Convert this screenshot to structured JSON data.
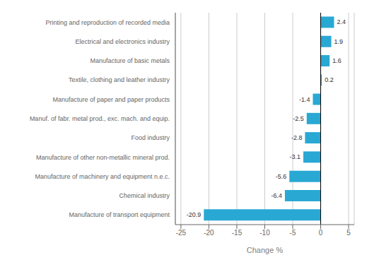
{
  "chart_data": {
    "type": "bar",
    "orientation": "horizontal",
    "categories": [
      "Manufacture of transport equipment",
      "Chemical industry",
      "Manufacture of machinery and equipment n.e.c.",
      "Manufacture of other non-metallic mineral prod.",
      "Food industry",
      "Manuf. of fabr. metal prod., exc. mach. and equip.",
      "Manufacture of paper and paper products",
      "Textile, clothing and leather industry",
      "Manufacture of basic metals",
      "Electrical and electronics industry",
      "Printing and reproduction of recorded media"
    ],
    "values": [
      -20.9,
      -6.4,
      -5.6,
      -3.1,
      -2.8,
      -2.5,
      -1.4,
      0.2,
      1.6,
      1.9,
      2.4
    ],
    "color": "#29a8d4",
    "xlabel": "Change %",
    "xlim": [
      -26,
      6
    ],
    "xticks": [
      -25,
      -20,
      -15,
      -10,
      -5,
      0,
      5
    ],
    "grid": true,
    "data_labels": true
  }
}
